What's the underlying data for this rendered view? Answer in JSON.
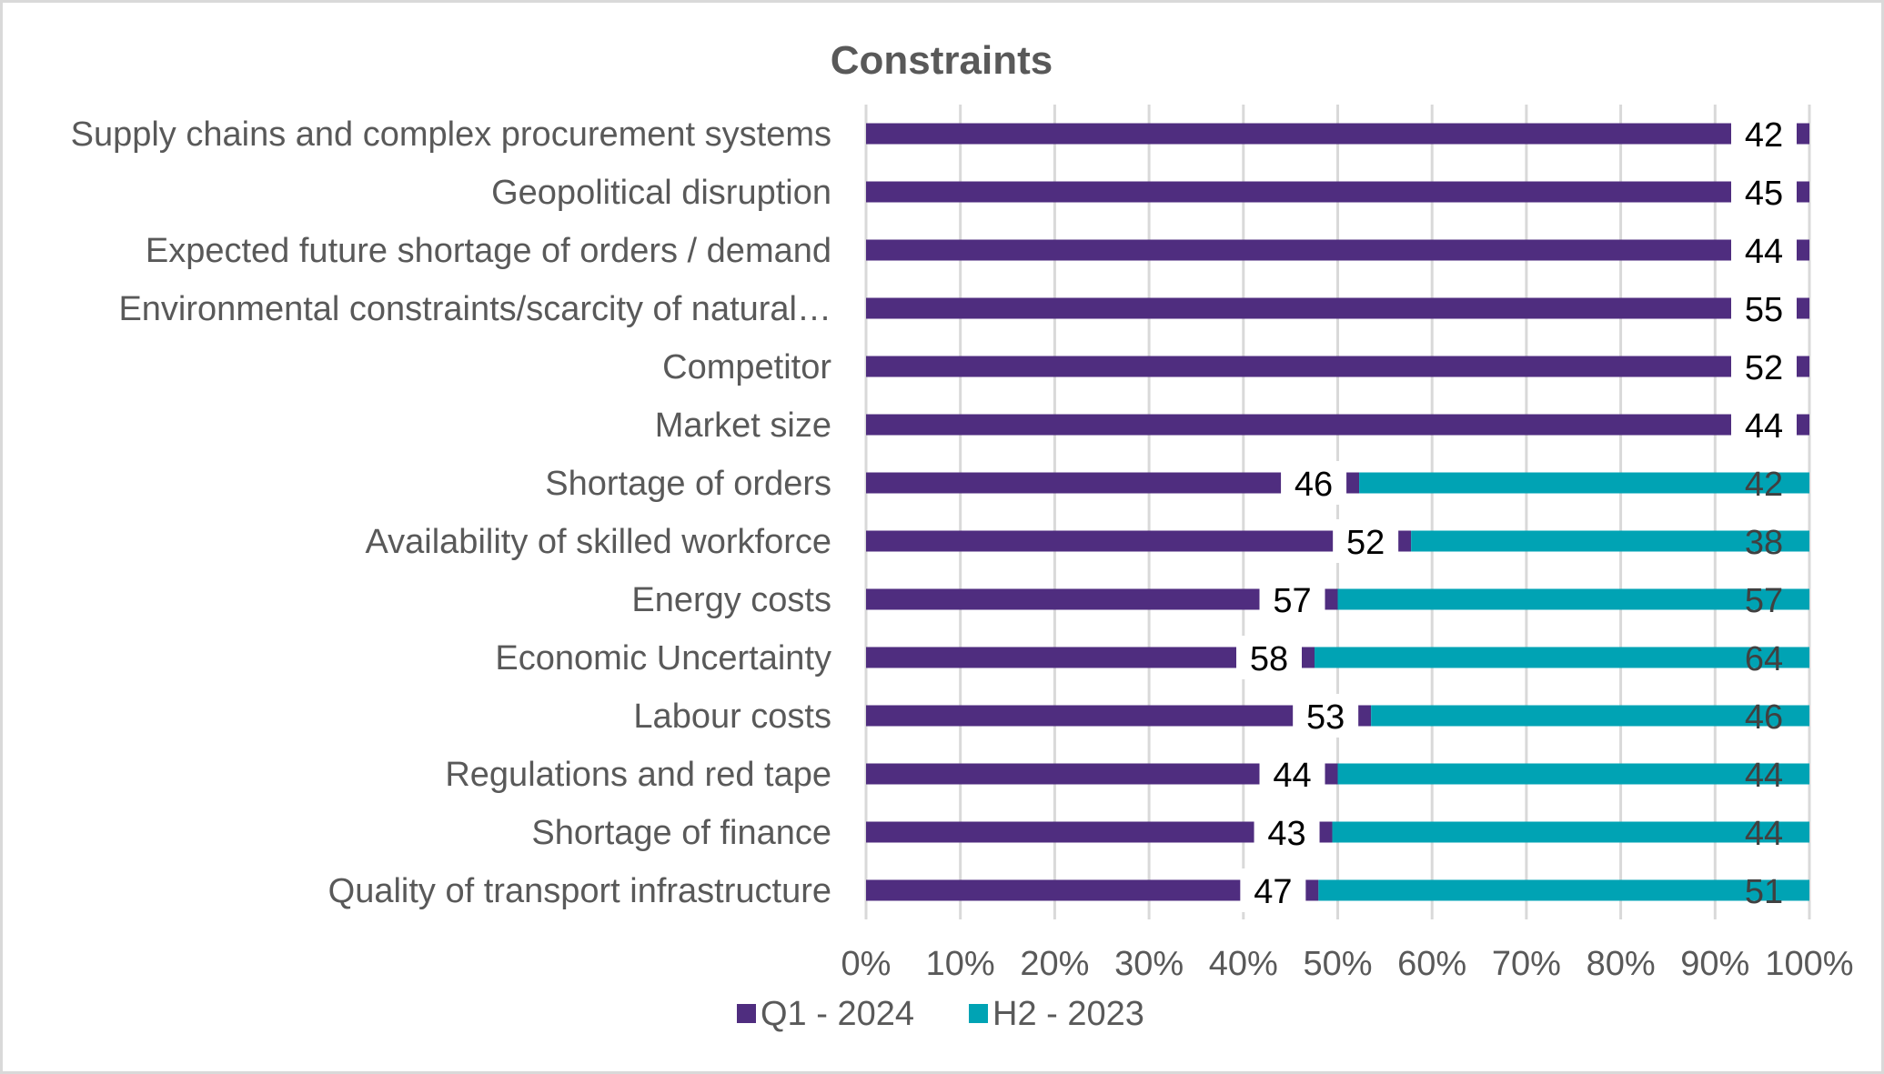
{
  "chart_data": {
    "type": "bar",
    "orientation": "horizontal",
    "stacked": "percent",
    "title": "Constraints",
    "xlabel": "",
    "ylabel": "",
    "xlim": [
      0,
      100
    ],
    "x_ticks": [
      "0%",
      "10%",
      "20%",
      "30%",
      "40%",
      "50%",
      "60%",
      "70%",
      "80%",
      "90%",
      "100%"
    ],
    "grid": true,
    "legend_position": "bottom",
    "categories": [
      "Supply chains and complex procurement systems",
      "Geopolitical disruption",
      "Expected future shortage of orders / demand",
      "Environmental constraints/scarcity of natural…",
      "Competitor",
      "Market size",
      "Shortage of orders",
      "Availability of skilled workforce",
      "Energy costs",
      "Economic Uncertainty",
      "Labour costs",
      "Regulations and red tape",
      "Shortage of finance",
      "Quality of transport infrastructure"
    ],
    "series": [
      {
        "name": "Q1 - 2024",
        "color": "#4F2D7F",
        "values": [
          42,
          45,
          44,
          55,
          52,
          44,
          46,
          52,
          57,
          58,
          53,
          44,
          43,
          47
        ]
      },
      {
        "name": "H2 - 2023",
        "color": "#00A3B4",
        "values": [
          null,
          null,
          null,
          null,
          null,
          null,
          42,
          38,
          57,
          64,
          46,
          44,
          44,
          51
        ]
      }
    ]
  }
}
